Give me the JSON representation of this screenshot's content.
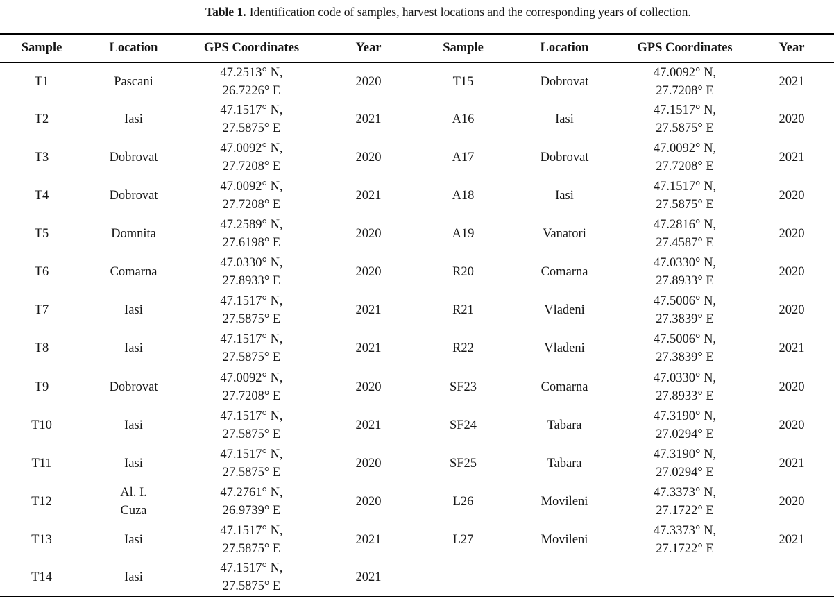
{
  "caption": {
    "label": "Table 1.",
    "text": "Identification code of samples, harvest locations and the corresponding years of collection."
  },
  "columns": [
    "Sample",
    "Location",
    "GPS Coordinates",
    "Year"
  ],
  "left_rows": [
    {
      "sample": "T1",
      "location": "Pascani",
      "gps": "47.2513° N,\n26.7226° E",
      "year": "2020"
    },
    {
      "sample": "T2",
      "location": "Iasi",
      "gps": "47.1517° N,\n27.5875° E",
      "year": "2021"
    },
    {
      "sample": "T3",
      "location": "Dobrovat",
      "gps": "47.0092° N,\n27.7208° E",
      "year": "2020"
    },
    {
      "sample": "T4",
      "location": "Dobrovat",
      "gps": "47.0092° N,\n27.7208° E",
      "year": "2021"
    },
    {
      "sample": "T5",
      "location": "Domnita",
      "gps": "47.2589° N,\n27.6198° E",
      "year": "2020"
    },
    {
      "sample": "T6",
      "location": "Comarna",
      "gps": "47.0330° N,\n27.8933° E",
      "year": "2020"
    },
    {
      "sample": "T7",
      "location": "Iasi",
      "gps": "47.1517° N,\n27.5875° E",
      "year": "2021"
    },
    {
      "sample": "T8",
      "location": "Iasi",
      "gps": "47.1517° N,\n27.5875° E",
      "year": "2021"
    },
    {
      "sample": "T9",
      "location": "Dobrovat",
      "gps": "47.0092° N,\n27.7208° E",
      "year": "2020"
    },
    {
      "sample": "T10",
      "location": "Iasi",
      "gps": "47.1517° N,\n27.5875° E",
      "year": "2021"
    },
    {
      "sample": "T11",
      "location": "Iasi",
      "gps": "47.1517° N,\n27.5875° E",
      "year": "2020"
    },
    {
      "sample": "T12",
      "location": "Al. I.\nCuza",
      "gps": "47.2761° N,\n26.9739° E",
      "year": "2020"
    },
    {
      "sample": "T13",
      "location": "Iasi",
      "gps": "47.1517° N,\n27.5875° E",
      "year": "2021"
    },
    {
      "sample": "T14",
      "location": "Iasi",
      "gps": "47.1517° N,\n27.5875° E",
      "year": "2021"
    }
  ],
  "right_rows": [
    {
      "sample": "T15",
      "location": "Dobrovat",
      "gps": "47.0092° N,\n27.7208° E",
      "year": "2021"
    },
    {
      "sample": "A16",
      "location": "Iasi",
      "gps": "47.1517° N,\n27.5875° E",
      "year": "2020"
    },
    {
      "sample": "A17",
      "location": "Dobrovat",
      "gps": "47.0092° N,\n27.7208° E",
      "year": "2021"
    },
    {
      "sample": "A18",
      "location": "Iasi",
      "gps": "47.1517° N,\n27.5875° E",
      "year": "2020"
    },
    {
      "sample": "A19",
      "location": "Vanatori",
      "gps": "47.2816° N,\n27.4587° E",
      "year": "2020"
    },
    {
      "sample": "R20",
      "location": "Comarna",
      "gps": "47.0330° N,\n27.8933° E",
      "year": "2020"
    },
    {
      "sample": "R21",
      "location": "Vladeni",
      "gps": "47.5006° N,\n27.3839° E",
      "year": "2020"
    },
    {
      "sample": "R22",
      "location": "Vladeni",
      "gps": "47.5006° N,\n27.3839° E",
      "year": "2021"
    },
    {
      "sample": "SF23",
      "location": "Comarna",
      "gps": "47.0330° N,\n27.8933° E",
      "year": "2020"
    },
    {
      "sample": "SF24",
      "location": "Tabara",
      "gps": "47.3190° N,\n27.0294° E",
      "year": "2020"
    },
    {
      "sample": "SF25",
      "location": "Tabara",
      "gps": "47.3190° N,\n27.0294° E",
      "year": "2021"
    },
    {
      "sample": "L26",
      "location": "Movileni",
      "gps": "47.3373° N,\n27.1722° E",
      "year": "2020"
    },
    {
      "sample": "L27",
      "location": "Movileni",
      "gps": "47.3373° N,\n27.1722° E",
      "year": "2021"
    }
  ]
}
